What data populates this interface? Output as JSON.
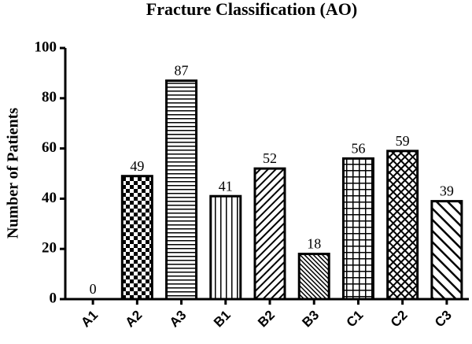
{
  "chart_data": {
    "type": "bar",
    "title": "Fracture Classification (AO)",
    "y_label": "Number of Patients",
    "categories": [
      "A1",
      "A2",
      "A3",
      "B1",
      "B2",
      "B3",
      "C1",
      "C2",
      "C3"
    ],
    "values": [
      0,
      49,
      87,
      41,
      52,
      18,
      56,
      59,
      39
    ],
    "ylim": [
      0,
      100
    ],
    "yticks": [
      0,
      20,
      40,
      60,
      80,
      100
    ],
    "grid": false,
    "color": "#000000"
  }
}
